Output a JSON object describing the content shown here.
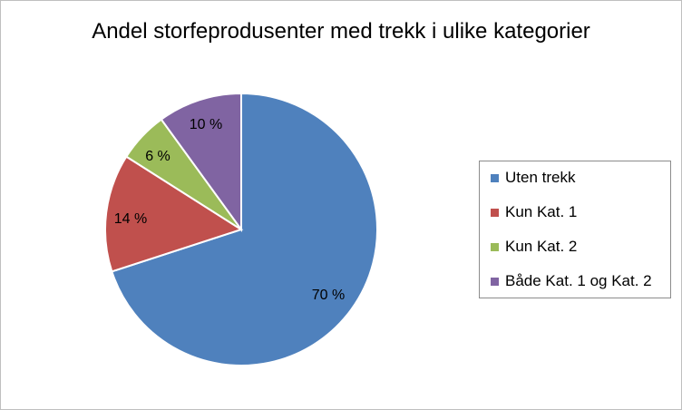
{
  "chart_data": {
    "type": "pie",
    "title": "Andel storfeprodusenter med trekk i ulike kategorier",
    "slices": [
      {
        "name": "Uten trekk",
        "value": 70,
        "label": "70 %",
        "color": "#4f81bd"
      },
      {
        "name": "Kun Kat. 1",
        "value": 14,
        "label": "14 %",
        "color": "#c0504d"
      },
      {
        "name": "Kun Kat. 2",
        "value": 6,
        "label": "6 %",
        "color": "#9bbb59"
      },
      {
        "name": "Både Kat. 1 og Kat. 2",
        "value": 10,
        "label": "10 %",
        "color": "#8064a2"
      }
    ],
    "legend_position": "right",
    "start_angle_deg": 0,
    "direction": "clockwise"
  }
}
